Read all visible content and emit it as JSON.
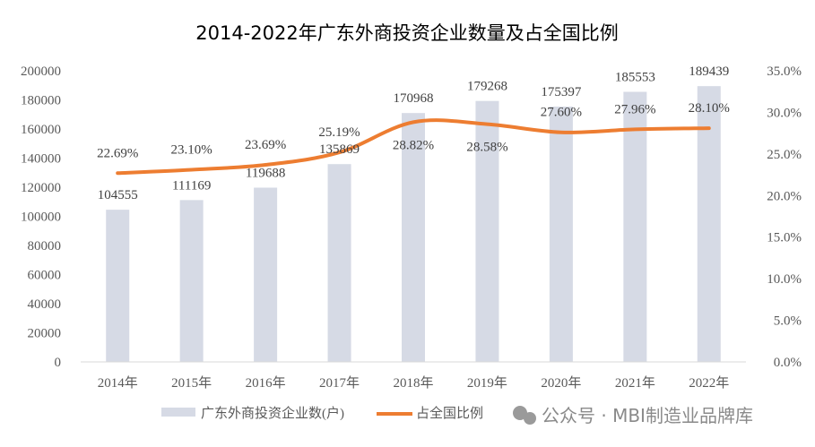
{
  "chart_data": {
    "type": "bar+line",
    "title": "2014-2022年广东外商投资企业数量及占全国比例",
    "categories": [
      "2014年",
      "2015年",
      "2016年",
      "2017年",
      "2018年",
      "2019年",
      "2020年",
      "2021年",
      "2022年"
    ],
    "series": [
      {
        "name": "广东外商投资企业数(户)",
        "type": "bar",
        "axis": "left",
        "values": [
          104555,
          111169,
          119688,
          135869,
          170968,
          179268,
          175397,
          185553,
          189439
        ],
        "labels": [
          "104555",
          "111169",
          "119688",
          "135869",
          "170968",
          "179268",
          "175397",
          "185553",
          "189439"
        ],
        "color": "#d6dae5"
      },
      {
        "name": "占全国比例",
        "type": "line",
        "axis": "right",
        "values": [
          22.69,
          23.1,
          23.69,
          25.19,
          28.82,
          28.58,
          27.6,
          27.96,
          28.1
        ],
        "labels": [
          "22.69%",
          "23.10%",
          "23.69%",
          "25.19%",
          "28.82%",
          "28.58%",
          "27.60%",
          "27.96%",
          "28.10%"
        ],
        "color": "#ed7d31"
      }
    ],
    "left_axis": {
      "ylim": [
        0,
        200000
      ],
      "ticks": [
        "0",
        "20000",
        "40000",
        "60000",
        "80000",
        "100000",
        "120000",
        "140000",
        "160000",
        "180000",
        "200000"
      ]
    },
    "right_axis": {
      "ylim": [
        0,
        35
      ],
      "ticks": [
        "0.0%",
        "5.0%",
        "10.0%",
        "15.0%",
        "20.0%",
        "25.0%",
        "30.0%",
        "35.0%"
      ]
    },
    "legend_position": "bottom",
    "grid": false
  },
  "watermark": "公众号 · MBI制造业品牌库"
}
